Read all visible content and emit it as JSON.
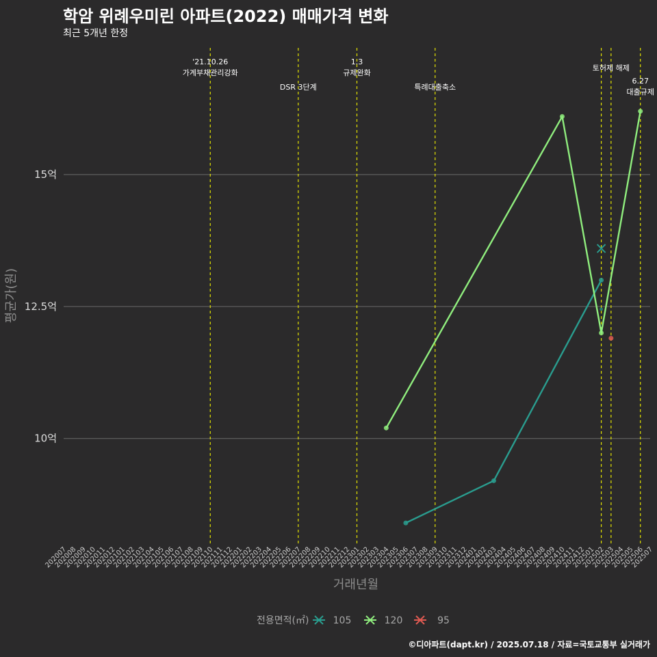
{
  "title": "학암 위례우미린 아파트(2022) 매매가격 변화",
  "subtitle": "최근 5개년 한정",
  "caption": "©디아파트(dapt.kr) / 2025.07.18 / 자료=국토교통부 실거래가",
  "chart_data": {
    "type": "line",
    "xlabel": "거래년월",
    "ylabel": "평균가(원)",
    "categories": [
      "202007",
      "202008",
      "202009",
      "202010",
      "202011",
      "202012",
      "202101",
      "202102",
      "202103",
      "202104",
      "202105",
      "202106",
      "202107",
      "202108",
      "202109",
      "202110",
      "202111",
      "202112",
      "202201",
      "202202",
      "202203",
      "202204",
      "202205",
      "202206",
      "202207",
      "202208",
      "202209",
      "202210",
      "202211",
      "202212",
      "202301",
      "202302",
      "202303",
      "202304",
      "202305",
      "202306",
      "202307",
      "202308",
      "202309",
      "202310",
      "202311",
      "202312",
      "202401",
      "202402",
      "202403",
      "202404",
      "202405",
      "202406",
      "202407",
      "202408",
      "202409",
      "202410",
      "202411",
      "202412",
      "202501",
      "202502",
      "202503",
      "202504",
      "202505",
      "202506",
      "202507"
    ],
    "yticks": [
      {
        "value": 10,
        "label": "10억"
      },
      {
        "value": 12.5,
        "label": "12.5억"
      },
      {
        "value": 15,
        "label": "15억"
      }
    ],
    "ylim": [
      8.0,
      17.4
    ],
    "grid": "horizontal",
    "legend": {
      "title": "전용면적(㎡)",
      "placement": "bottom"
    },
    "series": [
      {
        "name": "105",
        "color": "#2a9d8f",
        "points": [
          [
            "202306",
            8.4
          ],
          [
            "202403",
            9.2
          ],
          [
            "202502",
            13.0
          ]
        ],
        "extra": [
          [
            "202502",
            13.6,
            "cross"
          ],
          [
            "202502",
            12.45,
            "dot"
          ]
        ]
      },
      {
        "name": "120",
        "color": "#90ee7e",
        "points": [
          [
            "202304",
            10.2
          ],
          [
            "202410",
            16.1
          ],
          [
            "202502",
            12.0
          ],
          [
            "202506",
            16.2
          ]
        ],
        "extra": []
      },
      {
        "name": "95",
        "color": "#e05a52",
        "points": [
          [
            "202503",
            11.9
          ]
        ],
        "extra": []
      }
    ],
    "events": [
      {
        "x": "202110",
        "lines": [
          "'21.10.26",
          "가계부채관리강화"
        ],
        "row": 0
      },
      {
        "x": "202207",
        "lines": [
          "DSR 3단계"
        ],
        "row": 2
      },
      {
        "x": "202301",
        "lines": [
          "1.3",
          "규제완화"
        ],
        "row": 0
      },
      {
        "x": "202309",
        "lines": [
          "특례대출축소"
        ],
        "row": 2
      },
      {
        "x": "202502",
        "lines": [],
        "row": 1
      },
      {
        "x": "202503",
        "lines": [
          "토허제 해제"
        ],
        "row": 1
      },
      {
        "x": "202506",
        "lines": [
          "6.27",
          "대출규제"
        ],
        "row": 3
      }
    ]
  }
}
